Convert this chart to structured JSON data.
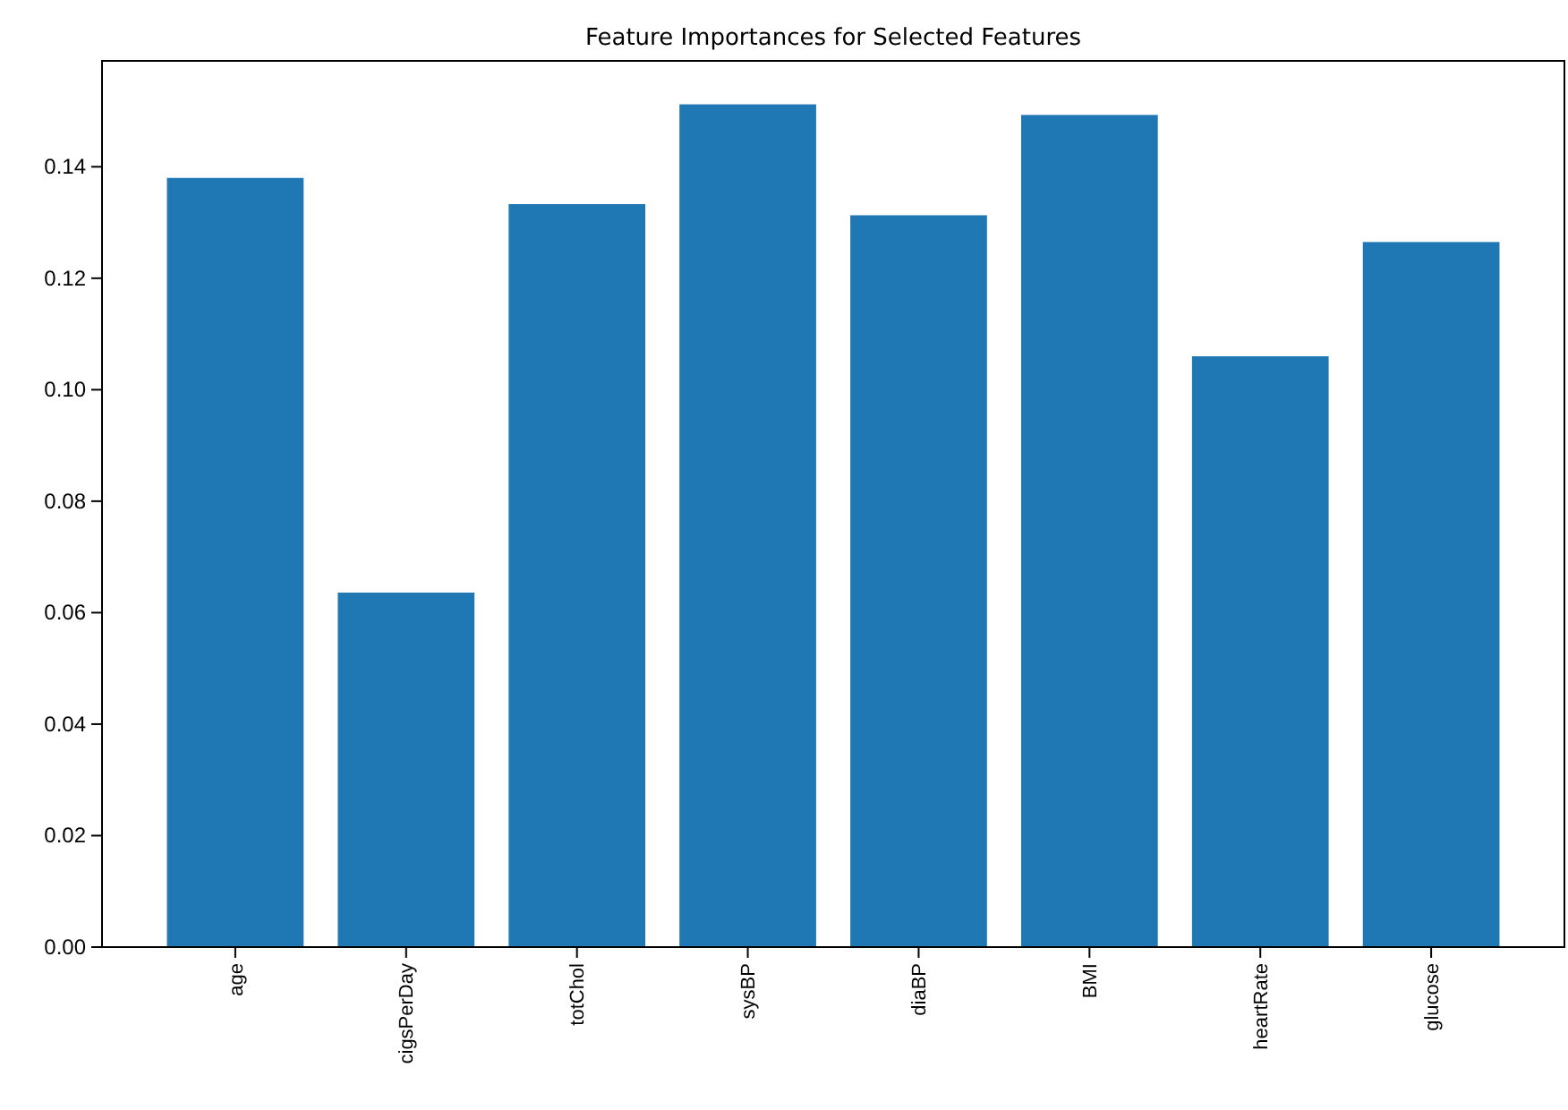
{
  "chart_data": {
    "type": "bar",
    "title": "Feature Importances for Selected Features",
    "categories": [
      "age",
      "cigsPerDay",
      "totChol",
      "sysBP",
      "diaBP",
      "BMI",
      "heartRate",
      "glucose"
    ],
    "values": [
      0.138,
      0.0636,
      0.1333,
      0.1512,
      0.1313,
      0.1493,
      0.106,
      0.1265
    ],
    "color": "#1f77b4",
    "ylim": [
      0,
      0.159
    ],
    "yticks": [
      {
        "value": 0,
        "label": "0.00"
      },
      {
        "value": 0.02,
        "label": "0.02"
      },
      {
        "value": 0.04,
        "label": "0.04"
      },
      {
        "value": 0.06,
        "label": "0.06"
      },
      {
        "value": 0.08,
        "label": "0.08"
      },
      {
        "value": 0.1,
        "label": "0.10"
      },
      {
        "value": 0.12,
        "label": "0.12"
      },
      {
        "value": 0.14,
        "label": "0.14"
      }
    ],
    "grid": false
  }
}
